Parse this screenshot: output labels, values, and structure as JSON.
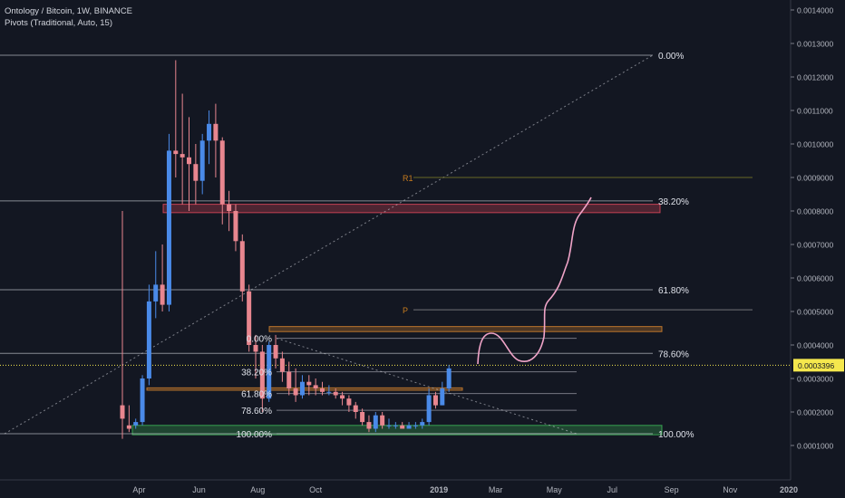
{
  "header": {
    "symbol_line": "Ontology / Bitcoin, 1W, BINANCE",
    "indicator_line": "Pivots (Traditional, Auto, 15)"
  },
  "chart_data": {
    "type": "candlestick",
    "title": "Ontology / Bitcoin, 1W, BINANCE",
    "y_axis": {
      "position": "right",
      "range": [
        4e-05,
        0.00145
      ],
      "ticks": [
        "0.0014000",
        "0.0013000",
        "0.0012000",
        "0.0011000",
        "0.0010000",
        "0.0009000",
        "0.0008000",
        "0.0007000",
        "0.0006000",
        "0.0005000",
        "0.0004000",
        "0.0003000",
        "0.0002000",
        "0.0001000"
      ]
    },
    "x_axis": {
      "range_weeks": [
        -2,
        91
      ],
      "ticks": [
        {
          "label": "Apr",
          "week": 2.5
        },
        {
          "label": "Jun",
          "week": 11.5
        },
        {
          "label": "Aug",
          "week": 20.3
        },
        {
          "label": "Oct",
          "week": 29
        },
        {
          "label": "2019",
          "week": 47.5
        },
        {
          "label": "Mar",
          "week": 56
        },
        {
          "label": "May",
          "week": 64.8
        },
        {
          "label": "Jul",
          "week": 73.5
        },
        {
          "label": "Sep",
          "week": 82.4
        },
        {
          "label": "Nov",
          "week": 91.2
        },
        {
          "label": "2020",
          "week": 100
        }
      ]
    },
    "candles": [
      [
        0.00022,
        0.00018,
        0.0008,
        0.00012
      ],
      [
        0.00016,
        0.00015,
        0.00022,
        0.00014
      ],
      [
        0.00016,
        0.00017,
        0.00018,
        0.00015
      ],
      [
        0.00017,
        0.0003,
        0.00031,
        0.00016
      ],
      [
        0.0003,
        0.00053,
        0.00058,
        0.00028
      ],
      [
        0.00053,
        0.00058,
        0.00068,
        0.00048
      ],
      [
        0.00058,
        0.00052,
        0.0007,
        0.0005
      ],
      [
        0.00052,
        0.00098,
        0.00103,
        0.0005
      ],
      [
        0.00098,
        0.00097,
        0.00125,
        0.0009
      ],
      [
        0.00097,
        0.00096,
        0.00115,
        0.00082
      ],
      [
        0.00096,
        0.00094,
        0.00108,
        0.0008
      ],
      [
        0.00094,
        0.00089,
        0.001,
        0.00082
      ],
      [
        0.00089,
        0.00101,
        0.00103,
        0.00085
      ],
      [
        0.00101,
        0.00106,
        0.0011,
        0.00094
      ],
      [
        0.00106,
        0.00101,
        0.00112,
        0.0009
      ],
      [
        0.00101,
        0.00082,
        0.00102,
        0.00076
      ],
      [
        0.00082,
        0.0008,
        0.00086,
        0.00074
      ],
      [
        0.0008,
        0.00071,
        0.00082,
        0.00068
      ],
      [
        0.00071,
        0.00056,
        0.00073,
        0.00053
      ],
      [
        0.00056,
        0.0004,
        0.00058,
        0.00038
      ],
      [
        0.0004,
        0.00038,
        0.00043,
        0.0003
      ],
      [
        0.00038,
        0.00024,
        0.0004,
        0.0002
      ],
      [
        0.00024,
        0.0004,
        0.00041,
        0.00023
      ],
      [
        0.0004,
        0.00036,
        0.00043,
        0.00033
      ],
      [
        0.00036,
        0.00032,
        0.00038,
        0.00029
      ],
      [
        0.00032,
        0.00027,
        0.00035,
        0.00025
      ],
      [
        0.00027,
        0.00025,
        0.00033,
        0.00023
      ],
      [
        0.00025,
        0.00029,
        0.00031,
        0.00024
      ],
      [
        0.00029,
        0.00028,
        0.00031,
        0.00025
      ],
      [
        0.00028,
        0.00027,
        0.0003,
        0.00025
      ],
      [
        0.00027,
        0.00026,
        0.00029,
        0.00025
      ],
      [
        0.00026,
        0.00026,
        0.00028,
        0.00025
      ],
      [
        0.00026,
        0.00025,
        0.00027,
        0.00024
      ],
      [
        0.00025,
        0.00024,
        0.00026,
        0.00022
      ],
      [
        0.00024,
        0.00022,
        0.00025,
        0.0002
      ],
      [
        0.00022,
        0.0002,
        0.00023,
        0.00018
      ],
      [
        0.0002,
        0.00017,
        0.00021,
        0.00016
      ],
      [
        0.00017,
        0.00015,
        0.00019,
        0.00014
      ],
      [
        0.00015,
        0.00019,
        0.0002,
        0.00014
      ],
      [
        0.00019,
        0.00016,
        0.0002,
        0.00015
      ],
      [
        0.00016,
        0.00016,
        0.00018,
        0.00015
      ],
      [
        0.00016,
        0.00016,
        0.00017,
        0.00015
      ],
      [
        0.00016,
        0.00015,
        0.00017,
        0.00015
      ],
      [
        0.00015,
        0.00016,
        0.00017,
        0.00015
      ],
      [
        0.00016,
        0.00016,
        0.00017,
        0.00015
      ],
      [
        0.00016,
        0.00017,
        0.00018,
        0.00015
      ],
      [
        0.00017,
        0.00025,
        0.00027,
        0.00016
      ],
      [
        0.00025,
        0.00022,
        0.00026,
        0.00021
      ],
      [
        0.00022,
        0.00027,
        0.00029,
        0.00022
      ],
      [
        0.00027,
        0.00033,
        0.00034,
        0.00026
      ]
    ],
    "colors": {
      "up": "#4a8ae8",
      "down": "#e8868f",
      "grid_line": "#c4c7cf",
      "current_price": "#f5e84d",
      "pivot_line": "#8c8c2a",
      "pivot_label": "#c87c1e",
      "projection": "#f0a4c8"
    },
    "current_price": {
      "value": 0.0003396,
      "label": "0.0003396"
    },
    "fib_large": [
      {
        "label": "0.00%",
        "value": 0.001265
      },
      {
        "label": "38.20%",
        "value": 0.00083
      },
      {
        "label": "61.80%",
        "value": 0.000565
      },
      {
        "label": "78.60%",
        "value": 0.000375
      },
      {
        "label": "100.00%",
        "value": 0.000135
      }
    ],
    "fib_small": [
      {
        "label": "0.00%",
        "value": 0.00042
      },
      {
        "label": "38.20%",
        "value": 0.00032
      },
      {
        "label": "61.80%",
        "value": 0.000255
      },
      {
        "label": "78.60%",
        "value": 0.000205
      },
      {
        "label": "100.00%",
        "value": 0.000135
      }
    ],
    "pivots": [
      {
        "label": "R1",
        "value": 0.0009
      },
      {
        "label": "P",
        "value": 0.000505
      }
    ],
    "zones": [
      {
        "name": "red-resistance",
        "low": 0.000795,
        "high": 0.00082,
        "color": "#e84a5f"
      },
      {
        "name": "orange-resistance",
        "low": 0.00044,
        "high": 0.000455,
        "color": "#e08a2e"
      },
      {
        "name": "orange-support",
        "low": 0.000265,
        "high": 0.000272,
        "color": "#e08a2e"
      },
      {
        "name": "green-support",
        "low": 0.000132,
        "high": 0.00016,
        "color": "#3fbf5a"
      }
    ]
  }
}
